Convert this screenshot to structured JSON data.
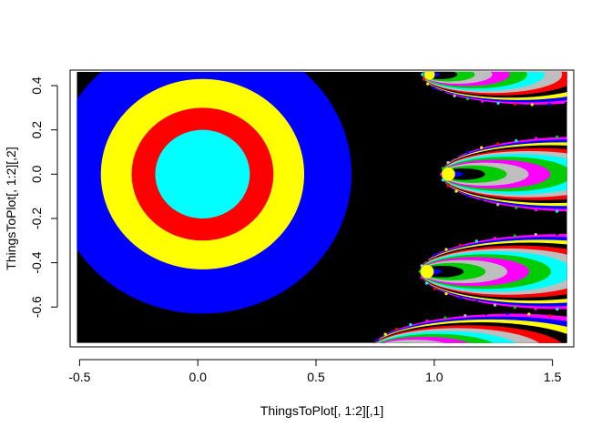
{
  "chart_data": {
    "type": "scatter",
    "title": "",
    "xlabel": "ThingsToPlot[, 1:2][,1]",
    "ylabel": "ThingsToPlot[, 1:2][,2]",
    "xlim": [
      -0.54,
      1.59
    ],
    "ylim": [
      -0.78,
      0.47
    ],
    "x_ticks": [
      -0.5,
      0.0,
      0.5,
      1.0,
      1.5
    ],
    "y_ticks": [
      -0.6,
      -0.4,
      -0.2,
      0.0,
      0.2,
      0.4
    ],
    "x_tick_labels": [
      "-0.5",
      "0.0",
      "0.5",
      "1.0",
      "1.5"
    ],
    "y_tick_labels": [
      "-0.6",
      "-0.4",
      "-0.2",
      "0.0",
      "0.2",
      "0.4"
    ],
    "grid": false,
    "point_region": {
      "x": [
        -0.5,
        1.55
      ],
      "y": [
        -0.75,
        0.45
      ]
    },
    "palette": [
      "#000000",
      "#0000ff",
      "#ffff00",
      "#ff0000",
      "#00ffff",
      "#ff00ff",
      "#00cc00",
      "#bebebe"
    ],
    "concentric_disc": {
      "center": [
        0.02,
        0.0
      ],
      "bands": [
        {
          "color": "#0000ff",
          "radius": 0.63
        },
        {
          "color": "#ffff00",
          "radius": 0.43
        },
        {
          "color": "#ff0000",
          "radius": 0.3
        },
        {
          "color": "#00ffff",
          "radius": 0.2
        }
      ]
    },
    "petal_lobes": [
      {
        "center": [
          0.97,
          0.45
        ],
        "scale": 0.8
      },
      {
        "center": [
          1.05,
          0.0
        ],
        "scale": 1.0
      },
      {
        "center": [
          0.96,
          -0.44
        ],
        "scale": 1.0
      },
      {
        "center": [
          0.75,
          -0.8
        ],
        "scale": 1.0
      }
    ]
  }
}
